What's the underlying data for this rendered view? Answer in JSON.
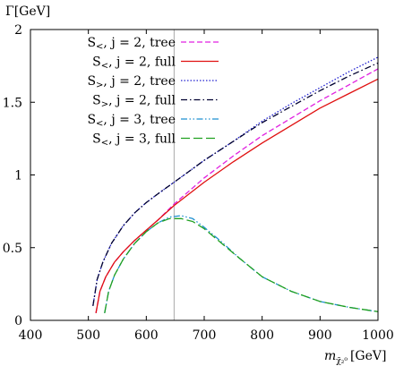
{
  "chart_data": {
    "type": "line",
    "ylabel": "Γ[GeV]",
    "xlabel": "m",
    "xlabel_subscript": "χ̃₂⁰",
    "xlabel_unit": "[GeV]",
    "xlim": [
      400,
      1000
    ],
    "ylim": [
      0,
      2
    ],
    "xticks": [
      400,
      500,
      600,
      700,
      800,
      900,
      1000
    ],
    "yticks": [
      0,
      0.5,
      1,
      1.5,
      2
    ],
    "xtick_labels": [
      "400",
      "500",
      "600",
      "700",
      "800",
      "900",
      "1000"
    ],
    "ytick_labels": [
      "0",
      "0.5",
      "1",
      "1.5",
      "2"
    ],
    "grid": false,
    "legend_position": "top-left",
    "vertical_line_x": 648,
    "series": [
      {
        "name": "S<, j = 2, tree",
        "label_parts": [
          "S",
          "<",
          ", j = 2, tree"
        ],
        "color": "#e020e0",
        "dash": "dashed",
        "x": [
          513,
          520,
          530,
          545,
          560,
          580,
          600,
          620,
          648,
          700,
          750,
          800,
          850,
          900,
          950,
          1000
        ],
        "y": [
          0.05,
          0.2,
          0.3,
          0.4,
          0.47,
          0.55,
          0.62,
          0.69,
          0.8,
          0.98,
          1.13,
          1.27,
          1.39,
          1.51,
          1.62,
          1.73
        ]
      },
      {
        "name": "S<, j = 2, full",
        "label_parts": [
          "S",
          "<",
          ", j = 2, full"
        ],
        "color": "#e01010",
        "dash": "solid",
        "x": [
          513,
          520,
          530,
          545,
          560,
          580,
          600,
          620,
          648,
          700,
          750,
          800,
          850,
          900,
          950,
          1000
        ],
        "y": [
          0.05,
          0.2,
          0.3,
          0.4,
          0.47,
          0.55,
          0.62,
          0.69,
          0.79,
          0.95,
          1.09,
          1.22,
          1.34,
          1.46,
          1.56,
          1.66
        ]
      },
      {
        "name": "S>, j = 2, tree",
        "label_parts": [
          "S",
          ">",
          ", j = 2, tree"
        ],
        "color": "#2020d0",
        "dash": "dotted",
        "x": [
          508,
          515,
          525,
          540,
          560,
          580,
          600,
          620,
          648,
          700,
          750,
          800,
          850,
          900,
          950,
          1000
        ],
        "y": [
          0.1,
          0.28,
          0.4,
          0.53,
          0.65,
          0.74,
          0.81,
          0.87,
          0.95,
          1.1,
          1.23,
          1.37,
          1.49,
          1.6,
          1.71,
          1.81
        ]
      },
      {
        "name": "S>, j = 2, full",
        "label_parts": [
          "S",
          ">",
          ", j = 2, full"
        ],
        "color": "#000030",
        "dash": "dashdot",
        "x": [
          508,
          515,
          525,
          540,
          560,
          580,
          600,
          620,
          648,
          700,
          750,
          800,
          850,
          900,
          950,
          1000
        ],
        "y": [
          0.1,
          0.28,
          0.4,
          0.53,
          0.65,
          0.74,
          0.81,
          0.87,
          0.95,
          1.1,
          1.23,
          1.36,
          1.47,
          1.58,
          1.68,
          1.77
        ]
      },
      {
        "name": "S<, j = 3, tree",
        "label_parts": [
          "S",
          "<",
          ", j = 3, tree"
        ],
        "color": "#1e90d0",
        "dash": "dashdotdot",
        "x": [
          528,
          535,
          545,
          560,
          580,
          600,
          620,
          640,
          660,
          680,
          700,
          730,
          760,
          800,
          850,
          900,
          950,
          1000
        ],
        "y": [
          0.05,
          0.2,
          0.31,
          0.42,
          0.53,
          0.61,
          0.67,
          0.71,
          0.72,
          0.7,
          0.64,
          0.54,
          0.43,
          0.3,
          0.2,
          0.13,
          0.09,
          0.06
        ]
      },
      {
        "name": "S<, j = 3, full",
        "label_parts": [
          "S",
          "<",
          ", j = 3, full"
        ],
        "color": "#20a020",
        "dash": "longdash",
        "x": [
          528,
          535,
          545,
          560,
          580,
          600,
          620,
          640,
          660,
          680,
          700,
          730,
          760,
          800,
          850,
          900,
          950,
          1000
        ],
        "y": [
          0.05,
          0.2,
          0.31,
          0.42,
          0.53,
          0.61,
          0.67,
          0.7,
          0.7,
          0.68,
          0.63,
          0.53,
          0.43,
          0.3,
          0.2,
          0.13,
          0.09,
          0.06
        ]
      }
    ]
  }
}
